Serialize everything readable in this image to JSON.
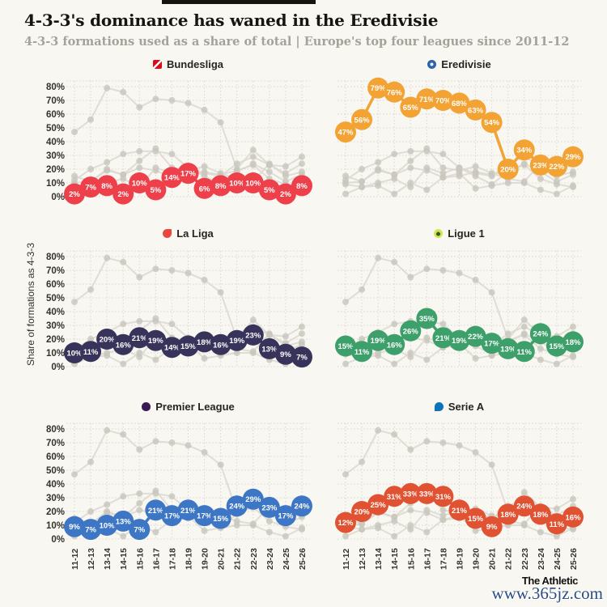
{
  "chart_data": {
    "type": "line",
    "title": "4-3-3's dominance has waned in the Eredivisie",
    "subtitle": "4-3-3 formations used as a share of total | Europe's top four leagues since 2011-12",
    "ylabel": "Share of formations as 4-3-3",
    "categories": [
      "11-12",
      "12-13",
      "13-14",
      "14-15",
      "15-16",
      "16-17",
      "17-18",
      "18-19",
      "19-20",
      "20-21",
      "21-22",
      "22-23",
      "23-24",
      "24-25",
      "25-26"
    ],
    "y_ticks": [
      "0%",
      "10%",
      "20%",
      "30%",
      "40%",
      "50%",
      "60%",
      "70%",
      "80%"
    ],
    "ylim": [
      0,
      85
    ],
    "grid": "dotted",
    "legend_position": "none",
    "layout_hint": "six small-multiple panels, each highlighting one league with all six leagues drawn in gray behind; y tick labels on left column only, x tick labels on bottom row only, data labels shown as percentages inside circular markers",
    "panels": [
      {
        "league": "Bundesliga",
        "icon": "bundesliga-logo-icon",
        "color": "#ee404a",
        "values": [
          2,
          7,
          8,
          2,
          10,
          5,
          14,
          17,
          6,
          8,
          10,
          10,
          5,
          2,
          8
        ]
      },
      {
        "league": "Eredivisie",
        "icon": "eredivisie-logo-icon",
        "color": "#f2a334",
        "values": [
          47,
          56,
          79,
          76,
          65,
          71,
          70,
          68,
          63,
          54,
          20,
          34,
          23,
          22,
          29
        ]
      },
      {
        "league": "La Liga",
        "icon": "laliga-logo-icon",
        "color": "#38335a",
        "values": [
          10,
          11,
          20,
          16,
          21,
          19,
          14,
          15,
          18,
          16,
          19,
          23,
          13,
          9,
          7
        ]
      },
      {
        "league": "Ligue 1",
        "icon": "ligue1-logo-icon",
        "color": "#3da06b",
        "values": [
          15,
          11,
          19,
          16,
          26,
          35,
          21,
          19,
          22,
          17,
          13,
          11,
          24,
          15,
          18
        ]
      },
      {
        "league": "Premier League",
        "icon": "premier-league-logo-icon",
        "color": "#3c76c4",
        "values": [
          9,
          7,
          10,
          13,
          7,
          21,
          17,
          21,
          17,
          15,
          24,
          29,
          23,
          17,
          24
        ]
      },
      {
        "league": "Serie A",
        "icon": "serie-a-logo-icon",
        "color": "#e15232",
        "values": [
          12,
          20,
          25,
          31,
          33,
          33,
          31,
          21,
          15,
          9,
          18,
          24,
          18,
          11,
          16
        ]
      }
    ]
  },
  "footer": {
    "brand": "The Athletic",
    "watermark": "www.365jz.com"
  }
}
